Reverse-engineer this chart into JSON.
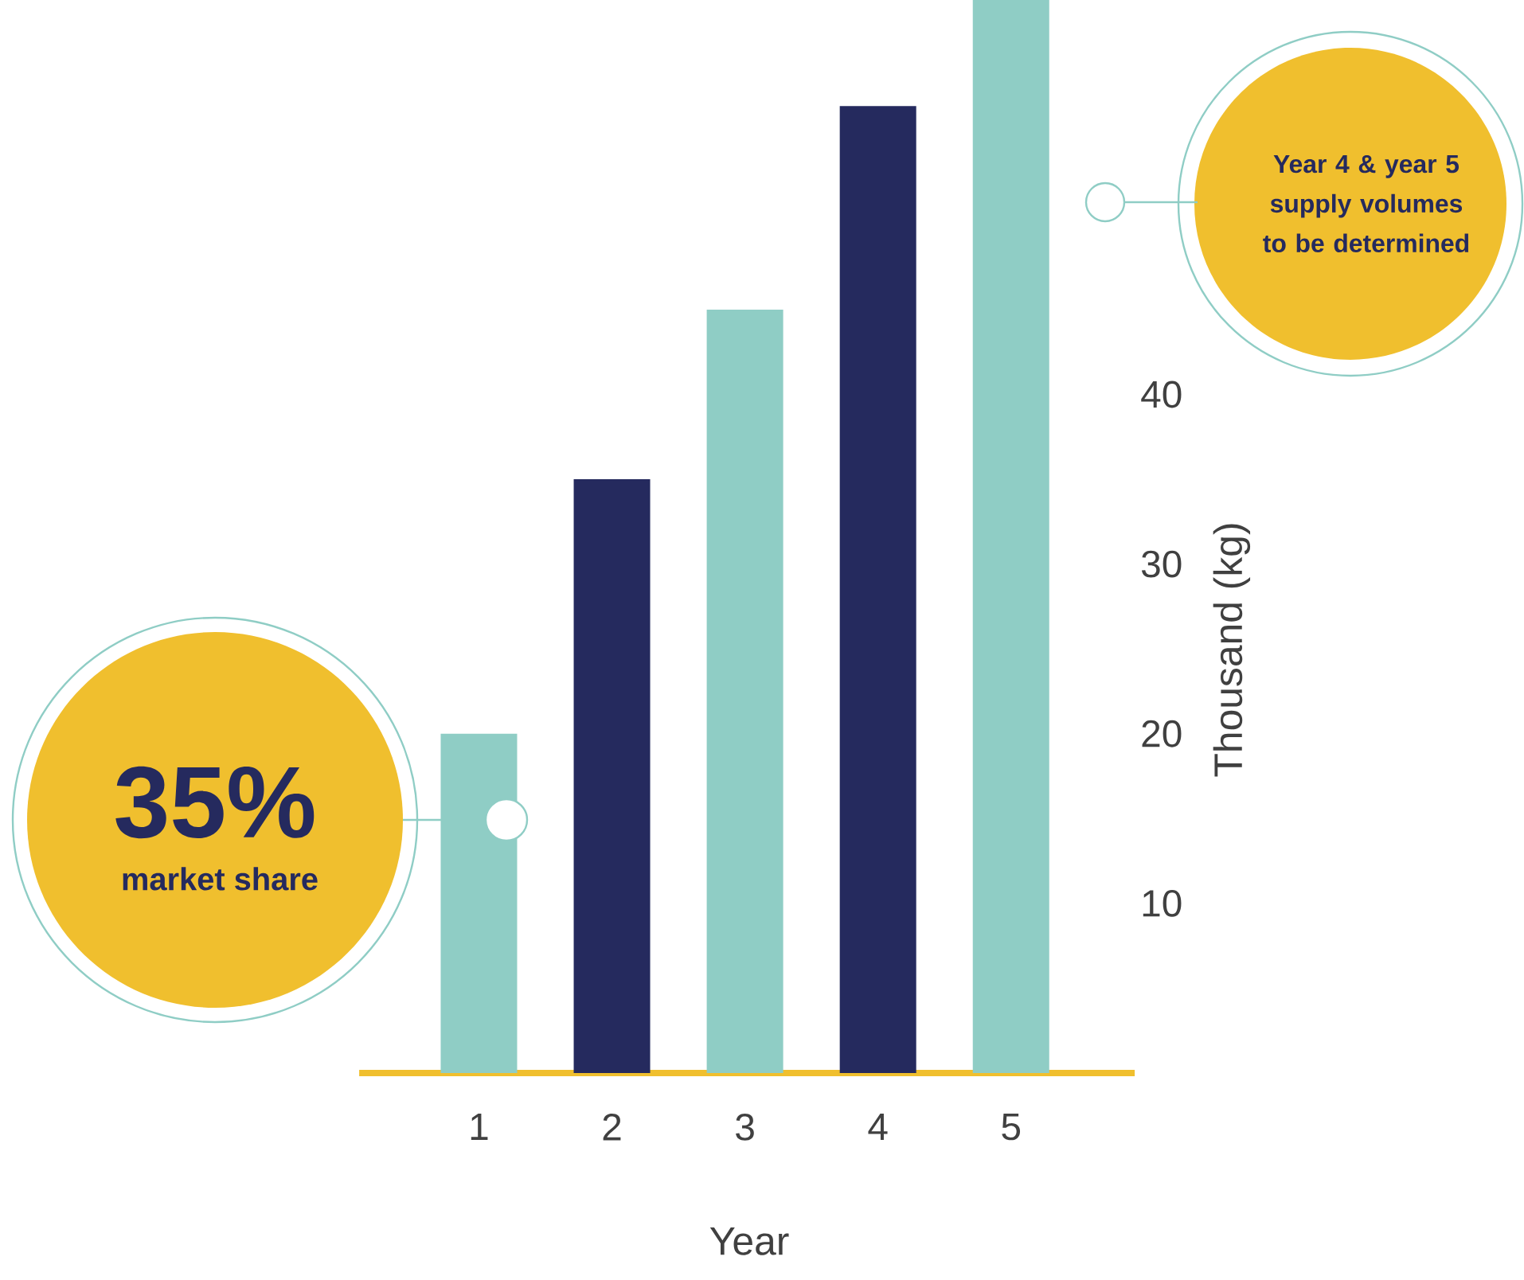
{
  "chart_data": {
    "type": "bar",
    "xlabel": "Year",
    "ylabel": "Thousand (kg)",
    "categories": [
      "1",
      "2",
      "3",
      "4",
      "5"
    ],
    "values": [
      20,
      35,
      45,
      57,
      64
    ],
    "colors": [
      "#8fcdc5",
      "#252a5e",
      "#8fcdc5",
      "#252a5e",
      "#8fcdc5"
    ],
    "ylim": [
      0,
      64
    ],
    "yticks": [
      10,
      20,
      30,
      40
    ],
    "grid": false,
    "annotations": [
      "35%",
      "market share",
      "Year 4 & year 5 supply volumes to be determined"
    ]
  }
}
